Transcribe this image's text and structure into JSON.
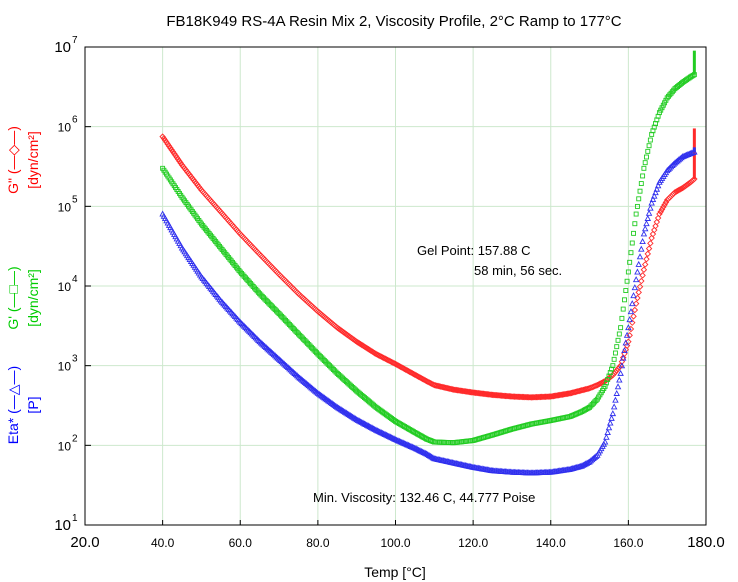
{
  "chart_data": {
    "type": "scatter",
    "title": "FB18K949 RS-4A Resin Mix 2, Viscosity Profile, 2°C Ramp to 177°C",
    "xlabel": "Temp [°C]",
    "xlim": [
      20,
      180
    ],
    "x_ticks": [
      "20.0",
      "40.0",
      "60.0",
      "80.0",
      "100.0",
      "120.0",
      "140.0",
      "160.0",
      "180.0"
    ],
    "ylim": [
      10,
      10000000
    ],
    "y_scale": "log",
    "y_ticks": [
      {
        "base": "10",
        "exp": "1"
      },
      {
        "base": "10",
        "exp": "2"
      },
      {
        "base": "10",
        "exp": "3"
      },
      {
        "base": "10",
        "exp": "4"
      },
      {
        "base": "10",
        "exp": "5"
      },
      {
        "base": "10",
        "exp": "6"
      },
      {
        "base": "10",
        "exp": "7"
      }
    ],
    "grid": true,
    "y_axis_labels": [
      {
        "name": "G\" (—◇—)",
        "unit": "[dyn/cm²]",
        "color": "#ff0000"
      },
      {
        "name": "G' (—□—)",
        "unit": "[dyn/cm²]",
        "color": "#00cc00"
      },
      {
        "name": "Eta* (—△—)",
        "unit": "[P]",
        "color": "#0000ff"
      }
    ],
    "series": [
      {
        "color": "#ff2a2a",
        "marker": "diamond",
        "points": [
          [
            40,
            750000
          ],
          [
            45,
            330000
          ],
          [
            50,
            160000
          ],
          [
            55,
            85000
          ],
          [
            60,
            45000
          ],
          [
            65,
            25000
          ],
          [
            70,
            14000
          ],
          [
            75,
            8000
          ],
          [
            80,
            4800
          ],
          [
            85,
            3000
          ],
          [
            90,
            2000
          ],
          [
            95,
            1400
          ],
          [
            100,
            1050
          ],
          [
            105,
            770
          ],
          [
            108,
            640
          ],
          [
            110,
            570
          ],
          [
            115,
            500
          ],
          [
            120,
            460
          ],
          [
            125,
            430
          ],
          [
            130,
            410
          ],
          [
            135,
            400
          ],
          [
            140,
            410
          ],
          [
            145,
            450
          ],
          [
            150,
            520
          ],
          [
            152,
            570
          ],
          [
            154,
            640
          ],
          [
            156,
            760
          ],
          [
            158,
            1000
          ],
          [
            160,
            2000
          ],
          [
            162,
            6000
          ],
          [
            164,
            16000
          ],
          [
            166,
            40000
          ],
          [
            168,
            80000
          ],
          [
            170,
            120000
          ],
          [
            172,
            150000
          ],
          [
            174,
            170000
          ],
          [
            176,
            200000
          ],
          [
            177,
            220000
          ]
        ],
        "tail": [
          [
            177,
            220000
          ],
          [
            177,
            950000
          ]
        ]
      },
      {
        "color": "#22cc22",
        "marker": "square",
        "points": [
          [
            40,
            300000
          ],
          [
            45,
            130000
          ],
          [
            50,
            60000
          ],
          [
            55,
            30000
          ],
          [
            60,
            15000
          ],
          [
            65,
            8000
          ],
          [
            70,
            4500
          ],
          [
            75,
            2500
          ],
          [
            80,
            1400
          ],
          [
            85,
            800
          ],
          [
            90,
            480
          ],
          [
            95,
            300
          ],
          [
            100,
            200
          ],
          [
            105,
            145
          ],
          [
            108,
            120
          ],
          [
            110,
            110
          ],
          [
            115,
            108
          ],
          [
            120,
            115
          ],
          [
            125,
            135
          ],
          [
            130,
            160
          ],
          [
            135,
            185
          ],
          [
            140,
            205
          ],
          [
            145,
            230
          ],
          [
            148,
            265
          ],
          [
            150,
            300
          ],
          [
            152,
            380
          ],
          [
            154,
            550
          ],
          [
            156,
            1000
          ],
          [
            158,
            3000
          ],
          [
            160,
            15000
          ],
          [
            162,
            80000
          ],
          [
            164,
            300000
          ],
          [
            166,
            800000
          ],
          [
            168,
            1500000
          ],
          [
            170,
            2300000
          ],
          [
            172,
            3000000
          ],
          [
            174,
            3600000
          ],
          [
            176,
            4200000
          ],
          [
            177,
            4500000
          ]
        ],
        "tail": [
          [
            177,
            4500000
          ],
          [
            177,
            9000000
          ]
        ]
      },
      {
        "color": "#3030ee",
        "marker": "triangle",
        "points": [
          [
            40,
            80000
          ],
          [
            45,
            30000
          ],
          [
            50,
            13000
          ],
          [
            55,
            6500
          ],
          [
            60,
            3500
          ],
          [
            65,
            2000
          ],
          [
            70,
            1200
          ],
          [
            75,
            720
          ],
          [
            80,
            450
          ],
          [
            85,
            300
          ],
          [
            90,
            210
          ],
          [
            95,
            155
          ],
          [
            100,
            118
          ],
          [
            105,
            92
          ],
          [
            108,
            78
          ],
          [
            110,
            68
          ],
          [
            115,
            60
          ],
          [
            120,
            53
          ],
          [
            125,
            48
          ],
          [
            130,
            46
          ],
          [
            135,
            45
          ],
          [
            140,
            46
          ],
          [
            145,
            50
          ],
          [
            148,
            55
          ],
          [
            150,
            62
          ],
          [
            152,
            75
          ],
          [
            154,
            110
          ],
          [
            156,
            250
          ],
          [
            158,
            800
          ],
          [
            160,
            3000
          ],
          [
            162,
            12000
          ],
          [
            164,
            45000
          ],
          [
            166,
            110000
          ],
          [
            168,
            200000
          ],
          [
            170,
            280000
          ],
          [
            172,
            350000
          ],
          [
            174,
            420000
          ],
          [
            176,
            460000
          ],
          [
            177,
            480000
          ]
        ],
        "tail": [
          [
            177,
            480000
          ],
          [
            177,
            550000
          ]
        ]
      }
    ],
    "annotations": {
      "gel_point_line1": "Gel Point: 157.88 C",
      "gel_point_line2": "58 min, 56 sec.",
      "min_viscosity": "Min. Viscosity: 132.46 C, 44.777 Poise"
    }
  }
}
